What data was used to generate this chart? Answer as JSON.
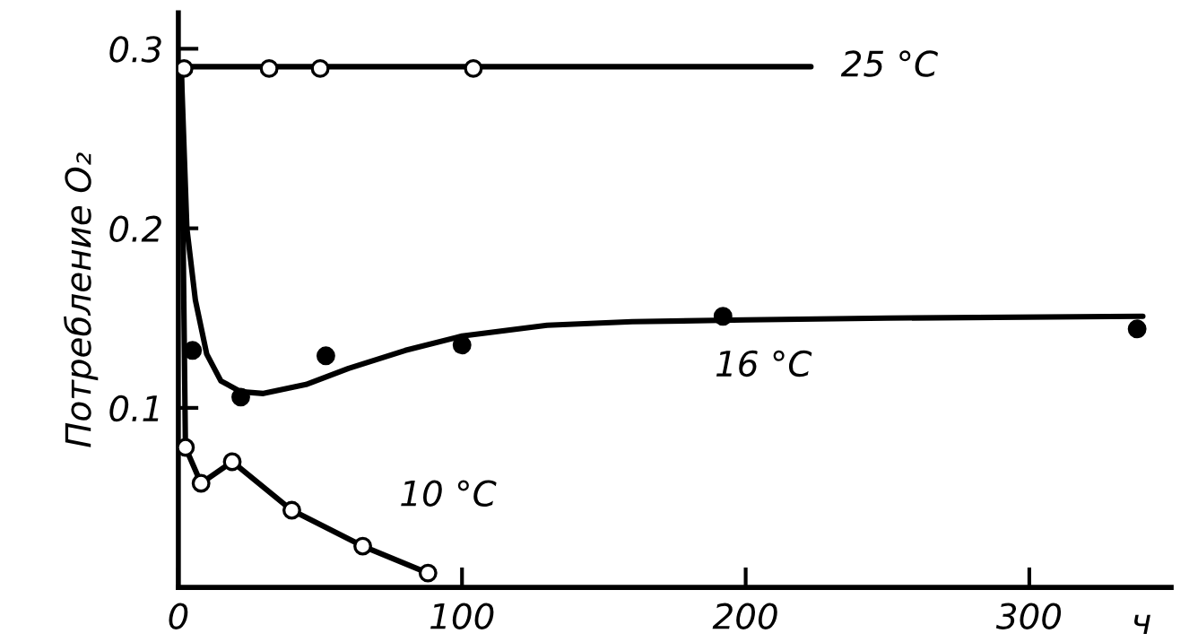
{
  "chart_data": {
    "type": "line",
    "ylabel": "Потребление O₂",
    "xlabel": "ч",
    "xlim": [
      0,
      350
    ],
    "ylim": [
      0,
      0.32
    ],
    "xticks": [
      0,
      100,
      200,
      300
    ],
    "yticks": [
      0.1,
      0.2,
      0.3
    ],
    "grid": false,
    "legend": false,
    "series": [
      {
        "marker": "none",
        "color": "#000000",
        "x": [
          0,
          223
        ],
        "values": [
          0.29,
          0.29
        ]
      },
      {
        "type": "scatter",
        "marker": "circle",
        "color": "#ffffff",
        "x": [
          2,
          32,
          50,
          104
        ],
        "values": [
          0.289,
          0.289,
          0.289,
          0.289
        ]
      },
      {
        "marker": "none",
        "color": "#000000",
        "x": [
          1,
          3,
          6,
          10,
          15,
          22,
          30,
          45,
          60,
          80,
          100,
          130,
          160,
          200,
          250,
          340
        ],
        "values": [
          0.29,
          0.2,
          0.16,
          0.13,
          0.115,
          0.109,
          0.108,
          0.113,
          0.122,
          0.132,
          0.14,
          0.146,
          0.148,
          0.149,
          0.15,
          0.151
        ]
      },
      {
        "type": "scatter",
        "marker": "circle",
        "color": "#000000",
        "x": [
          5,
          22,
          52,
          100,
          192,
          338
        ],
        "values": [
          0.132,
          0.106,
          0.129,
          0.135,
          0.151,
          0.144
        ]
      },
      {
        "marker": "none",
        "color": "#000000",
        "x": [
          1,
          2.5,
          8,
          19,
          40,
          65,
          88
        ],
        "values": [
          0.29,
          0.078,
          0.058,
          0.07,
          0.043,
          0.023,
          0.008
        ]
      },
      {
        "type": "scatter",
        "marker": "circle",
        "color": "#ffffff",
        "x": [
          2.5,
          8,
          19,
          40,
          65,
          88
        ],
        "values": [
          0.078,
          0.058,
          0.07,
          0.043,
          0.023,
          0.008
        ]
      }
    ],
    "annotations": [
      {
        "text": "25 °C",
        "x": 223,
        "y": 0.29
      },
      {
        "text": "16 °C",
        "x": 215,
        "y": 0.149
      },
      {
        "text": "10 °C",
        "x": 88,
        "y": 0.008
      }
    ]
  }
}
